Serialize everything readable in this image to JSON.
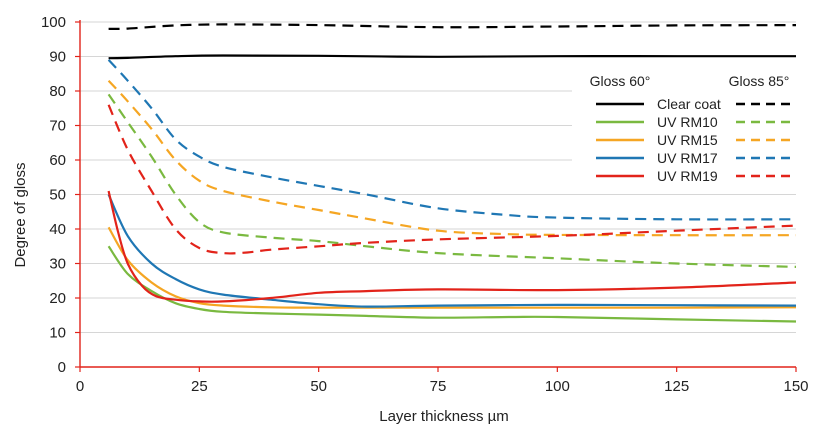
{
  "chart_data": {
    "type": "line",
    "title": "",
    "xlabel": "Layer thickness µm",
    "ylabel": "Degree of gloss",
    "xlim": [
      0,
      150
    ],
    "ylim": [
      0,
      100
    ],
    "xticks": [
      0,
      25,
      50,
      75,
      100,
      125,
      150
    ],
    "yticks": [
      0,
      10,
      20,
      30,
      40,
      50,
      60,
      70,
      80,
      90,
      100
    ],
    "grid": "horizontal",
    "axis_color": "#e2231a",
    "legend": {
      "placement": "top-right",
      "header_solid": "Gloss 60°",
      "header_dashed": "Gloss 85°"
    },
    "series": [
      {
        "name": "Clear coat",
        "color": "#000000",
        "gloss60": [
          [
            6,
            89.5
          ],
          [
            10,
            89.6
          ],
          [
            20,
            90.1
          ],
          [
            30,
            90.3
          ],
          [
            50,
            90.2
          ],
          [
            75,
            89.9
          ],
          [
            100,
            90.1
          ],
          [
            125,
            90.1
          ],
          [
            150,
            90.1
          ]
        ],
        "gloss85": [
          [
            6,
            98
          ],
          [
            10,
            98.1
          ],
          [
            20,
            99
          ],
          [
            30,
            99.3
          ],
          [
            50,
            99.1
          ],
          [
            75,
            98.5
          ],
          [
            100,
            98.7
          ],
          [
            125,
            99
          ],
          [
            150,
            99.1
          ]
        ]
      },
      {
        "name": "UV RM10",
        "color": "#7ab940",
        "gloss60": [
          [
            6,
            35
          ],
          [
            10,
            27
          ],
          [
            15,
            22
          ],
          [
            20,
            18.5
          ],
          [
            25,
            16.8
          ],
          [
            30,
            16
          ],
          [
            40,
            15.5
          ],
          [
            50,
            15.2
          ],
          [
            60,
            14.8
          ],
          [
            75,
            14.3
          ],
          [
            90,
            14.5
          ],
          [
            100,
            14.5
          ],
          [
            125,
            13.8
          ],
          [
            150,
            13.2
          ]
        ],
        "gloss85": [
          [
            6,
            79
          ],
          [
            10,
            71
          ],
          [
            15,
            61
          ],
          [
            20,
            50
          ],
          [
            25,
            42
          ],
          [
            30,
            39
          ],
          [
            40,
            37.5
          ],
          [
            50,
            36.5
          ],
          [
            60,
            35
          ],
          [
            75,
            33
          ],
          [
            100,
            31.5
          ],
          [
            125,
            30
          ],
          [
            150,
            29
          ]
        ]
      },
      {
        "name": "UV RM15",
        "color": "#f5a623",
        "gloss60": [
          [
            6,
            40.5
          ],
          [
            10,
            31
          ],
          [
            15,
            24.5
          ],
          [
            20,
            20.5
          ],
          [
            25,
            18.5
          ],
          [
            30,
            17.8
          ],
          [
            40,
            17.3
          ],
          [
            50,
            17.2
          ],
          [
            75,
            17.2
          ],
          [
            100,
            17.2
          ],
          [
            125,
            17.2
          ],
          [
            150,
            17.3
          ]
        ],
        "gloss85": [
          [
            6,
            83
          ],
          [
            10,
            77
          ],
          [
            15,
            69
          ],
          [
            20,
            60
          ],
          [
            25,
            54
          ],
          [
            30,
            51
          ],
          [
            40,
            48
          ],
          [
            50,
            45.5
          ],
          [
            60,
            43
          ],
          [
            75,
            39.5
          ],
          [
            90,
            38.5
          ],
          [
            100,
            38.3
          ],
          [
            125,
            38.2
          ],
          [
            150,
            38.2
          ]
        ]
      },
      {
        "name": "UV RM17",
        "color": "#1f77b4",
        "gloss60": [
          [
            6,
            50
          ],
          [
            10,
            38
          ],
          [
            15,
            30
          ],
          [
            20,
            25.5
          ],
          [
            25,
            22.5
          ],
          [
            30,
            21
          ],
          [
            40,
            19.5
          ],
          [
            50,
            18.2
          ],
          [
            60,
            17.5
          ],
          [
            75,
            17.8
          ],
          [
            100,
            18
          ],
          [
            125,
            17.9
          ],
          [
            150,
            17.8
          ]
        ],
        "gloss85": [
          [
            6,
            89
          ],
          [
            10,
            83
          ],
          [
            15,
            75
          ],
          [
            20,
            66
          ],
          [
            25,
            61
          ],
          [
            30,
            58
          ],
          [
            40,
            55
          ],
          [
            50,
            52.5
          ],
          [
            60,
            50
          ],
          [
            75,
            46
          ],
          [
            90,
            44
          ],
          [
            100,
            43.3
          ],
          [
            125,
            42.8
          ],
          [
            150,
            42.8
          ]
        ]
      },
      {
        "name": "UV RM19",
        "color": "#e2231a",
        "gloss60": [
          [
            6,
            51
          ],
          [
            8,
            39
          ],
          [
            10,
            30
          ],
          [
            13,
            23.5
          ],
          [
            16,
            20.5
          ],
          [
            20,
            19.5
          ],
          [
            25,
            19
          ],
          [
            30,
            19
          ],
          [
            40,
            20
          ],
          [
            50,
            21.5
          ],
          [
            60,
            22
          ],
          [
            75,
            22.5
          ],
          [
            100,
            22.3
          ],
          [
            125,
            23
          ],
          [
            150,
            24.5
          ]
        ],
        "gloss85": [
          [
            6,
            76
          ],
          [
            10,
            63
          ],
          [
            15,
            51
          ],
          [
            20,
            40
          ],
          [
            25,
            34.5
          ],
          [
            30,
            33
          ],
          [
            35,
            33.2
          ],
          [
            40,
            34
          ],
          [
            50,
            35
          ],
          [
            60,
            36
          ],
          [
            75,
            37
          ],
          [
            100,
            38
          ],
          [
            125,
            39.5
          ],
          [
            150,
            41
          ]
        ]
      }
    ]
  }
}
